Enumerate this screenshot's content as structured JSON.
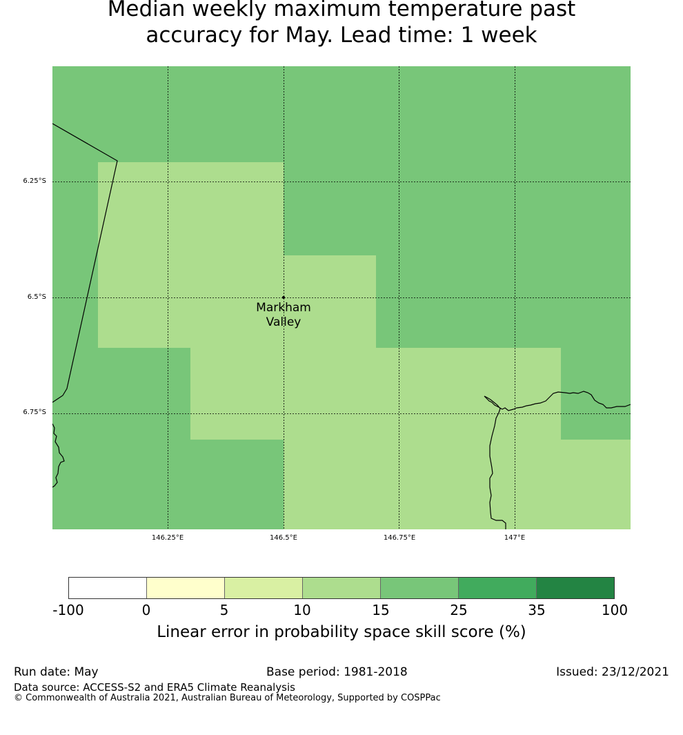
{
  "title": {
    "line1": "Median weekly maximum temperature past",
    "line2": "accuracy for May. Lead time: 1 week"
  },
  "map": {
    "background_color": "#78c679",
    "highlight_color": "#addd8e",
    "latitude_labels": [
      "6.25°S",
      "6.5°S",
      "6.75°S"
    ],
    "longitude_labels": [
      "146.25°E",
      "146.5°E",
      "146.75°E",
      "147°E"
    ],
    "place": {
      "name_line1": "Markham",
      "name_line2": "Valley"
    }
  },
  "colorbar": {
    "segment_colors": [
      "#ffffff",
      "#ffffcc",
      "#d9f0a3",
      "#addd8e",
      "#78c679",
      "#41ab5d",
      "#238443"
    ],
    "ticks": [
      "-100",
      "0",
      "5",
      "10",
      "15",
      "25",
      "35",
      "100"
    ],
    "label": "Linear error in probability space skill score (%)"
  },
  "footer": {
    "run_date": "Run date: May",
    "base_period": "Base period: 1981-2018",
    "issued": "Issued: 23/12/2021",
    "data_source": "Data source: ACCESS-S2 and ERA5 Climate Reanalysis",
    "copyright": "© Commonwealth of Australia 2021, Australian Bureau of Meteorology, Supported by COSPPac"
  }
}
